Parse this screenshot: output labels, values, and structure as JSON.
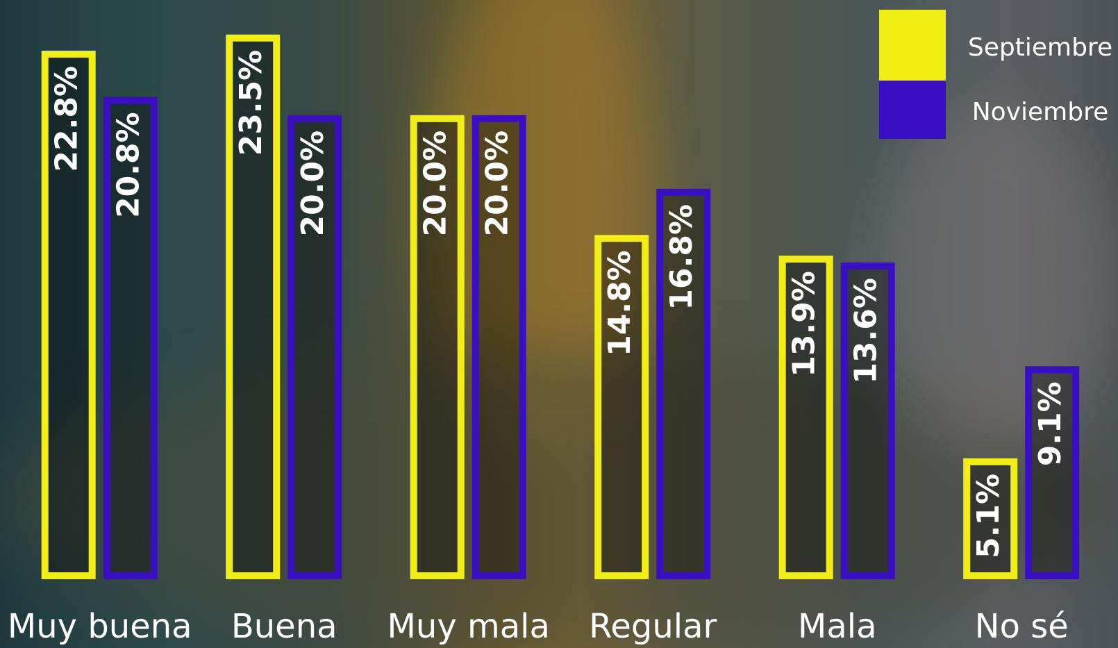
{
  "chart_data": {
    "type": "bar",
    "categories": [
      "Muy buena",
      "Buena",
      "Muy mala",
      "Regular",
      "Mala",
      "No sé"
    ],
    "series": [
      {
        "name": "Septiembre",
        "color": "#f0ee14",
        "values": [
          22.8,
          23.5,
          20.0,
          14.8,
          13.9,
          5.1
        ],
        "value_labels": [
          "22.8%",
          "23.5%",
          "20.0%",
          "14.8%",
          "13.9%",
          "5.1%"
        ]
      },
      {
        "name": "Noviembre",
        "color": "#3a0fc4",
        "values": [
          20.8,
          20.0,
          20.0,
          16.8,
          13.6,
          9.1
        ],
        "value_labels": [
          "20.8%",
          "20.0%",
          "20.0%",
          "16.8%",
          "13.6%",
          "9.1%"
        ]
      }
    ],
    "ylim": [
      0,
      25
    ],
    "legend": "upper right"
  }
}
